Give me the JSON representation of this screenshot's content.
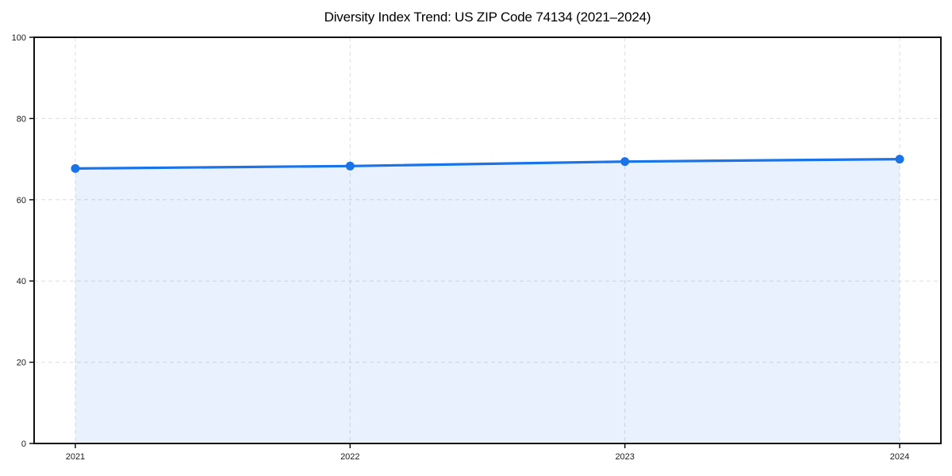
{
  "chart_data": {
    "type": "area",
    "title": "Diversity Index Trend: US ZIP Code 74134 (2021–2024)",
    "categories": [
      "2021",
      "2022",
      "2023",
      "2024"
    ],
    "series": [
      {
        "name": "Diversity Index",
        "values": [
          67.7,
          68.3,
          69.4,
          70.0
        ]
      }
    ],
    "xlabel": "",
    "ylabel": "",
    "ylim": [
      0,
      100
    ],
    "yticks": [
      0,
      20,
      40,
      60,
      80,
      100
    ],
    "grid": "dashed-both-axes",
    "legend": "none",
    "colors": {
      "line": "#1a73e8",
      "marker": "#1a73e8",
      "fill_rgba": "rgba(26,115,232,0.10)",
      "grid": "#dedede",
      "axis": "#111111",
      "tick_text": "#1a1a1a",
      "title_text": "#000000",
      "background": "#ffffff"
    }
  }
}
